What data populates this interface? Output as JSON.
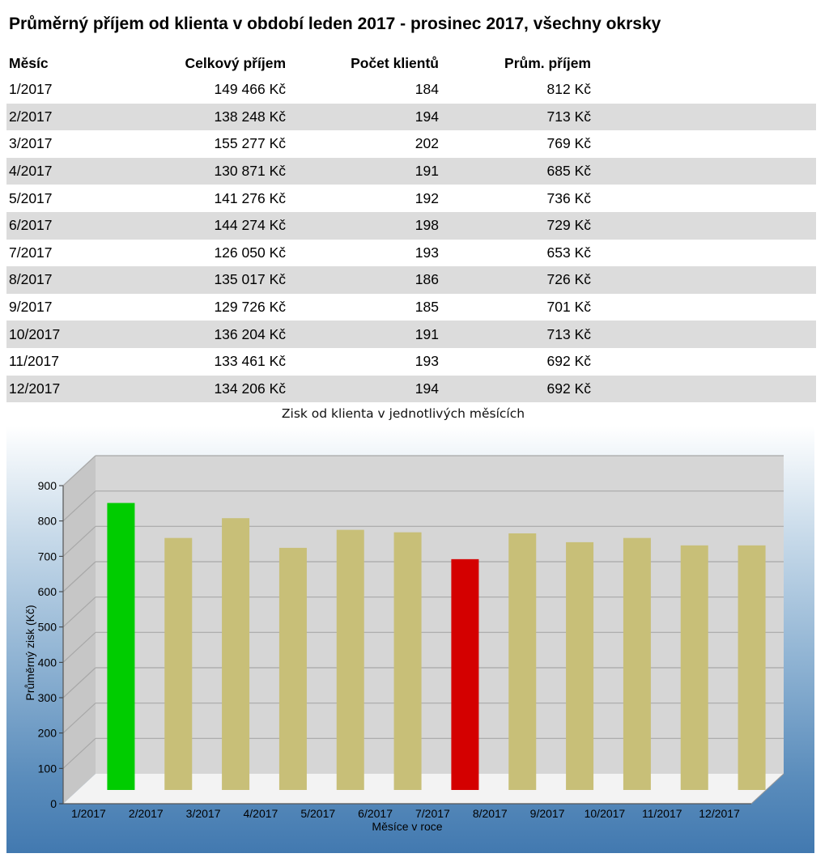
{
  "page_title": "Průměrný příjem od klienta v období leden 2017 - prosinec 2017, všechny okrsky",
  "table": {
    "headers": [
      "Měsíc",
      "Celkový příjem",
      "Počet klientů",
      "Prům. příjem"
    ],
    "rows": [
      [
        "1/2017",
        "149 466 Kč",
        "184",
        "812 Kč"
      ],
      [
        "2/2017",
        "138 248 Kč",
        "194",
        "713 Kč"
      ],
      [
        "3/2017",
        "155 277 Kč",
        "202",
        "769 Kč"
      ],
      [
        "4/2017",
        "130 871 Kč",
        "191",
        "685 Kč"
      ],
      [
        "5/2017",
        "141 276 Kč",
        "192",
        "736 Kč"
      ],
      [
        "6/2017",
        "144 274 Kč",
        "198",
        "729 Kč"
      ],
      [
        "7/2017",
        "126 050 Kč",
        "193",
        "653 Kč"
      ],
      [
        "8/2017",
        "135 017 Kč",
        "186",
        "726 Kč"
      ],
      [
        "9/2017",
        "129 726 Kč",
        "185",
        "701 Kč"
      ],
      [
        "10/2017",
        "136 204 Kč",
        "191",
        "713 Kč"
      ],
      [
        "11/2017",
        "133 461 Kč",
        "193",
        "692 Kč"
      ],
      [
        "12/2017",
        "134 206 Kč",
        "194",
        "692 Kč"
      ]
    ]
  },
  "chart_data": {
    "type": "bar",
    "title": "Zisk od klienta v jednotlivých měsících",
    "xlabel": "Měsíce v roce",
    "ylabel": "Průměrný zisk (Kč)",
    "categories": [
      "1/2017",
      "2/2017",
      "3/2017",
      "4/2017",
      "5/2017",
      "6/2017",
      "7/2017",
      "8/2017",
      "9/2017",
      "10/2017",
      "11/2017",
      "12/2017"
    ],
    "values": [
      812,
      713,
      769,
      685,
      736,
      729,
      653,
      726,
      701,
      713,
      692,
      692
    ],
    "ylim": [
      0,
      900
    ],
    "yticks": [
      "0",
      "100",
      "200",
      "300",
      "400",
      "500",
      "600",
      "700",
      "800",
      "900"
    ],
    "grid": true,
    "three_d": true,
    "colors": {
      "bar": "#c8bf78",
      "max_bar": "#00cc00",
      "min_bar": "#d40000",
      "wall": "#d6d6d6",
      "side_wall": "#c6c6c6",
      "floor": "#f3f3f3",
      "gridline": "#a8a8a8"
    }
  }
}
